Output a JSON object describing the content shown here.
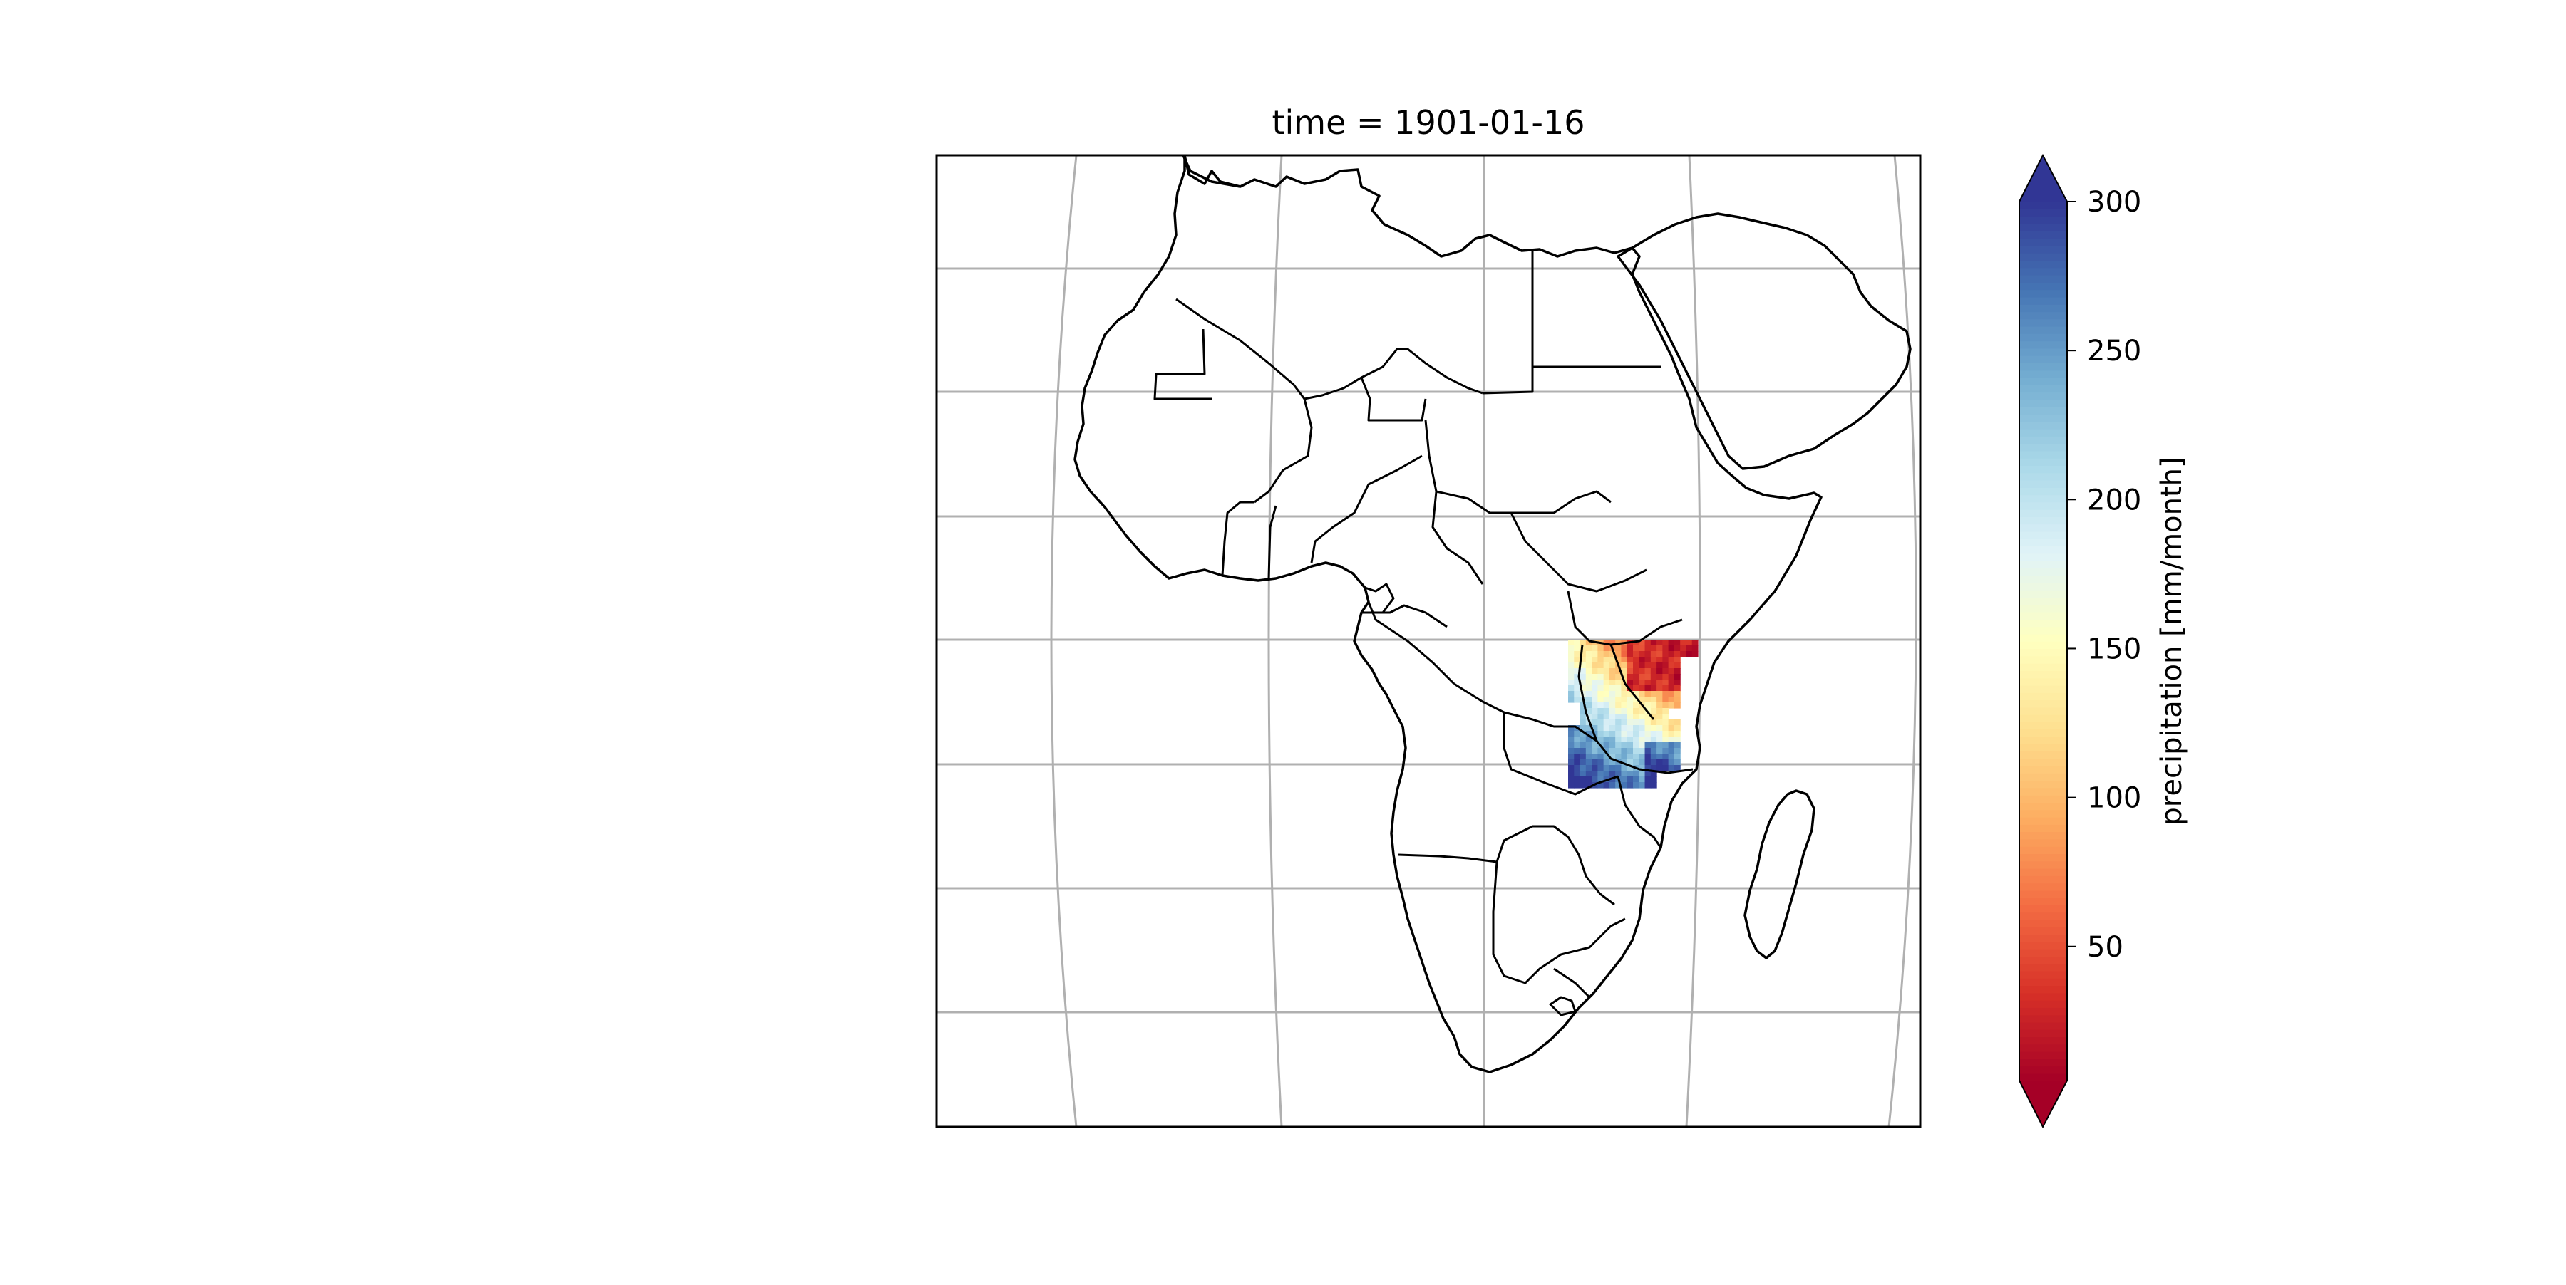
{
  "title": "time = 1901-01-16",
  "colorbar": {
    "label": "precipitation [mm/month]",
    "ticks": [
      50,
      100,
      150,
      200,
      250,
      300
    ],
    "range": [
      5,
      300
    ],
    "extend": "both",
    "colormap": "RdYlBu",
    "colors": [
      "#a50026",
      "#d73027",
      "#f46d43",
      "#fdae61",
      "#fee090",
      "#ffffbf",
      "#e0f3f8",
      "#abd9e9",
      "#74add1",
      "#4575b4",
      "#313695"
    ]
  },
  "map": {
    "region": "Africa",
    "projection": "orthographic-like",
    "gridlines": true,
    "coastlines": true,
    "borders": true,
    "data_region": "East Africa (Tanzania / Kenya / Malawi area)",
    "colors": {
      "land_outline": "#000000",
      "gridline": "#b0b0b0",
      "frame": "#000000"
    }
  }
}
